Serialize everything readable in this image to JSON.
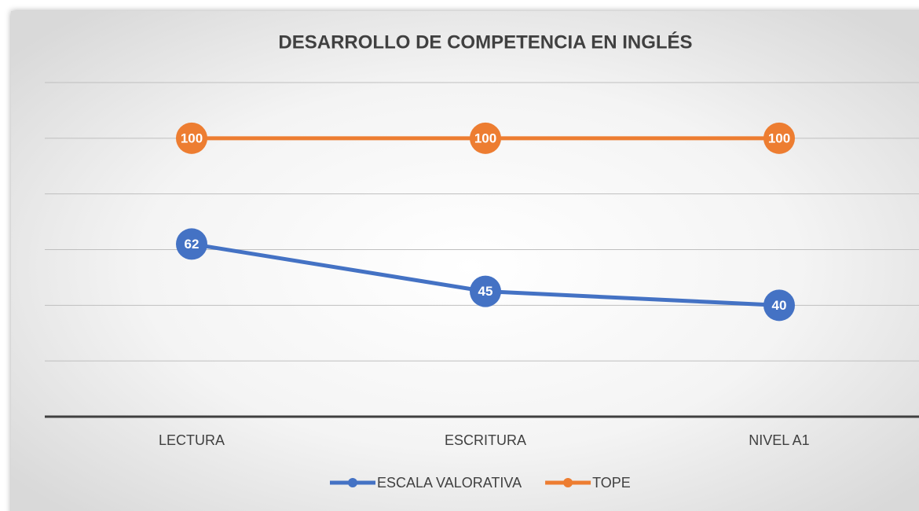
{
  "chart_data": {
    "type": "line",
    "title": "DESARROLLO DE COMPETENCIA EN INGLÉS",
    "categories": [
      "LECTURA",
      "ESCRITURA",
      "NIVEL A1"
    ],
    "series": [
      {
        "name": "ESCALA VALORATIVA",
        "color": "#4472c4",
        "values": [
          62,
          45,
          40
        ]
      },
      {
        "name": "TOPE",
        "color": "#ed7d31",
        "values": [
          100,
          100,
          100
        ]
      }
    ],
    "ylim": [
      0,
      120
    ],
    "yticks": [
      0,
      20,
      40,
      60,
      80,
      100,
      120
    ],
    "grid": true,
    "legend": "bottom"
  }
}
